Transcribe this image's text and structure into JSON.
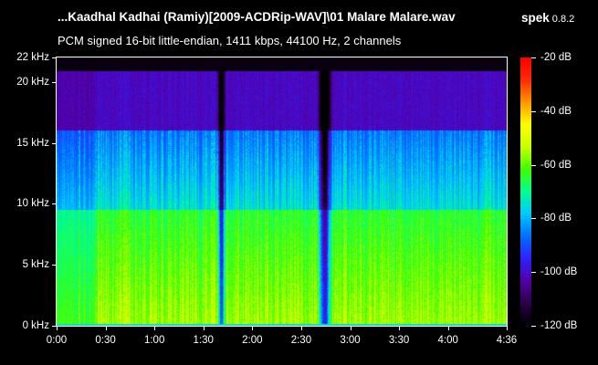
{
  "header": {
    "file_title": "...Kaadhal Kadhai (Ramiy)[2009-ACDRip-WAV]\\01 Malare Malare.wav",
    "app_name": "spek",
    "app_version": "0.8.2",
    "audio_info": "PCM signed 16-bit little-endian, 1411 kbps, 44100 Hz, 2 channels"
  },
  "freq_axis": {
    "max_khz": 22,
    "ticks": [
      {
        "value": 22,
        "label": "22 kHz"
      },
      {
        "value": 20,
        "label": "20 kHz"
      },
      {
        "value": 15,
        "label": "15 kHz"
      },
      {
        "value": 10,
        "label": "10 kHz"
      },
      {
        "value": 5,
        "label": "5 kHz"
      },
      {
        "value": 0,
        "label": "0 kHz"
      }
    ]
  },
  "time_axis": {
    "duration_seconds": 276,
    "ticks": [
      {
        "value": 0,
        "label": "0:00"
      },
      {
        "value": 30,
        "label": "0:30"
      },
      {
        "value": 60,
        "label": "1:00"
      },
      {
        "value": 90,
        "label": "1:30"
      },
      {
        "value": 120,
        "label": "2:00"
      },
      {
        "value": 150,
        "label": "2:30"
      },
      {
        "value": 180,
        "label": "3:00"
      },
      {
        "value": 210,
        "label": "3:30"
      },
      {
        "value": 240,
        "label": "4:00"
      },
      {
        "value": 276,
        "label": "4:36"
      }
    ]
  },
  "db_scale": {
    "min_db": -120,
    "max_db": -20,
    "ticks": [
      {
        "value": -20,
        "label": "-20 dB"
      },
      {
        "value": -40,
        "label": "-40 dB"
      },
      {
        "value": -60,
        "label": "-60 dB"
      },
      {
        "value": -80,
        "label": "-80 dB"
      },
      {
        "value": -100,
        "label": "-100 dB"
      },
      {
        "value": -120,
        "label": "-120 dB"
      }
    ],
    "gradient": [
      "#000000",
      "#2a004a",
      "#5200a8",
      "#3020ff",
      "#0070ff",
      "#00c8ff",
      "#00ff90",
      "#40ff00",
      "#c8ff00",
      "#ffff00",
      "#ff9800",
      "#ff2a00",
      "#ff0000"
    ]
  }
}
